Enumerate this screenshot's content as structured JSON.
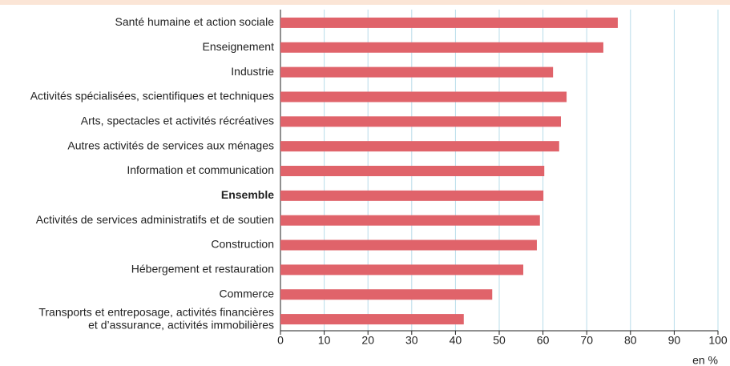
{
  "chart_data": {
    "type": "hbar",
    "categories": [
      "Santé humaine et action sociale",
      "Enseignement",
      "Industrie",
      "Activités spécialisées, scientifiques et techniques",
      "Arts, spectacles et activités récréatives",
      "Autres activités de services aux ménages",
      "Information et communication",
      "Ensemble",
      "Activités de services administratifs et de soutien",
      "Construction",
      "Hébergement et restauration",
      "Commerce",
      "Transports et entreposage, activités financières\net d’assurance, activités immobilières"
    ],
    "values": [
      77.1,
      73.8,
      62.3,
      65.4,
      64.1,
      63.7,
      60.3,
      60.1,
      59.3,
      58.6,
      55.5,
      48.4,
      41.9
    ],
    "color": "#e0636a",
    "xlim": [
      0,
      100
    ],
    "xticks": [
      0,
      10,
      20,
      30,
      40,
      50,
      60,
      70,
      80,
      90,
      100
    ],
    "xlabel": "en %",
    "grid": true
  }
}
